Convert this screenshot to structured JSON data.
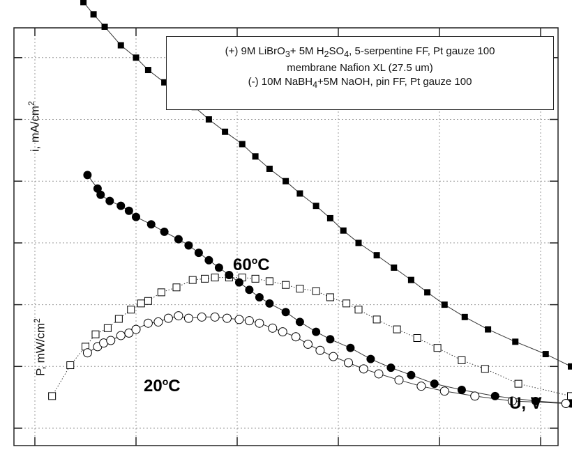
{
  "chart_data": {
    "type": "scatter",
    "xlabel": "U, V",
    "ylabel_current": "i, mA/cm",
    "ylabel_power": "P, mW/cm",
    "grid": true,
    "legend_position": "top-right",
    "legend": {
      "line1_pre": "(+) 9M LiBrO",
      "line1_sub1": "3",
      "line1_mid": "+ 5M H",
      "line1_sub2": "2",
      "line1_mid2": "SO",
      "line1_sub3": "4",
      "line1_post": ", 5-serpentine FF, Pt gauze 100",
      "line2": "membrane Nafion XL (27.5 um)",
      "line3_pre": "(-) 10M NaBH",
      "line3_sub": "4",
      "line3_post": "+5M NaOH, pin FF, Pt gauze 100"
    },
    "annotations": {
      "t60_base": "60",
      "t60_sup": "o",
      "t60_unit": "C",
      "t20_base": "20",
      "t20_sup": "o",
      "t20_unit": "C",
      "sup2": "2"
    },
    "series": [
      {
        "name": "i 60C",
        "marker": "filled-square",
        "line": "solid",
        "points": [
          [
            0.17,
            7.5
          ],
          [
            0.35,
            7.2
          ],
          [
            0.48,
            6.9
          ],
          [
            0.58,
            6.7
          ],
          [
            0.69,
            6.5
          ],
          [
            0.85,
            6.2
          ],
          [
            1.0,
            6.0
          ],
          [
            1.12,
            5.8
          ],
          [
            1.28,
            5.6
          ],
          [
            1.42,
            5.4
          ],
          [
            1.58,
            5.2
          ],
          [
            1.72,
            5.0
          ],
          [
            1.88,
            4.8
          ],
          [
            2.05,
            4.6
          ],
          [
            2.18,
            4.4
          ],
          [
            2.32,
            4.2
          ],
          [
            2.48,
            4.0
          ],
          [
            2.62,
            3.8
          ],
          [
            2.78,
            3.6
          ],
          [
            2.92,
            3.4
          ],
          [
            3.05,
            3.2
          ],
          [
            3.2,
            3.0
          ],
          [
            3.38,
            2.8
          ],
          [
            3.55,
            2.6
          ],
          [
            3.72,
            2.4
          ],
          [
            3.88,
            2.2
          ],
          [
            4.05,
            2.0
          ],
          [
            4.25,
            1.8
          ],
          [
            4.48,
            1.6
          ],
          [
            4.75,
            1.4
          ],
          [
            5.05,
            1.2
          ],
          [
            5.3,
            1.0
          ],
          [
            5.72,
            0.42
          ]
        ]
      },
      {
        "name": "P 60C",
        "marker": "open-square",
        "line": "dotted",
        "points": [
          [
            0.17,
            0.52
          ],
          [
            0.35,
            1.02
          ],
          [
            0.5,
            1.32
          ],
          [
            0.6,
            1.52
          ],
          [
            0.72,
            1.62
          ],
          [
            0.83,
            1.77
          ],
          [
            0.95,
            1.92
          ],
          [
            1.05,
            2.02
          ],
          [
            1.12,
            2.06
          ],
          [
            1.25,
            2.2
          ],
          [
            1.4,
            2.28
          ],
          [
            1.56,
            2.4
          ],
          [
            1.68,
            2.42
          ],
          [
            1.78,
            2.44
          ],
          [
            1.92,
            2.44
          ],
          [
            2.05,
            2.44
          ],
          [
            2.18,
            2.42
          ],
          [
            2.32,
            2.38
          ],
          [
            2.48,
            2.32
          ],
          [
            2.62,
            2.26
          ],
          [
            2.78,
            2.22
          ],
          [
            2.92,
            2.12
          ],
          [
            3.08,
            2.02
          ],
          [
            3.2,
            1.92
          ],
          [
            3.38,
            1.76
          ],
          [
            3.58,
            1.6
          ],
          [
            3.78,
            1.46
          ],
          [
            3.98,
            1.3
          ],
          [
            4.22,
            1.1
          ],
          [
            4.45,
            0.96
          ],
          [
            4.78,
            0.72
          ],
          [
            5.3,
            0.52
          ],
          [
            5.72,
            0.4
          ]
        ]
      },
      {
        "name": "i 20C",
        "marker": "filled-circle",
        "line": "solid",
        "points": [
          [
            0.52,
            4.1
          ],
          [
            0.62,
            3.88
          ],
          [
            0.65,
            3.78
          ],
          [
            0.74,
            3.68
          ],
          [
            0.85,
            3.6
          ],
          [
            0.93,
            3.52
          ],
          [
            1.0,
            3.42
          ],
          [
            1.15,
            3.3
          ],
          [
            1.28,
            3.18
          ],
          [
            1.42,
            3.06
          ],
          [
            1.52,
            2.96
          ],
          [
            1.62,
            2.84
          ],
          [
            1.72,
            2.72
          ],
          [
            1.82,
            2.6
          ],
          [
            1.92,
            2.48
          ],
          [
            2.02,
            2.36
          ],
          [
            2.12,
            2.24
          ],
          [
            2.22,
            2.12
          ],
          [
            2.32,
            2.02
          ],
          [
            2.48,
            1.88
          ],
          [
            2.62,
            1.72
          ],
          [
            2.78,
            1.56
          ],
          [
            2.92,
            1.44
          ],
          [
            3.12,
            1.3
          ],
          [
            3.32,
            1.12
          ],
          [
            3.52,
            0.98
          ],
          [
            3.72,
            0.86
          ],
          [
            3.95,
            0.72
          ],
          [
            4.22,
            0.62
          ],
          [
            4.55,
            0.52
          ],
          [
            4.95,
            0.44
          ],
          [
            5.3,
            0.4
          ]
        ]
      },
      {
        "name": "P 20C",
        "marker": "open-circle",
        "line": "solid",
        "points": [
          [
            0.52,
            1.22
          ],
          [
            0.62,
            1.32
          ],
          [
            0.68,
            1.38
          ],
          [
            0.75,
            1.42
          ],
          [
            0.85,
            1.5
          ],
          [
            0.93,
            1.54
          ],
          [
            1.0,
            1.6
          ],
          [
            1.12,
            1.7
          ],
          [
            1.22,
            1.72
          ],
          [
            1.32,
            1.78
          ],
          [
            1.42,
            1.82
          ],
          [
            1.52,
            1.78
          ],
          [
            1.65,
            1.8
          ],
          [
            1.78,
            1.8
          ],
          [
            1.9,
            1.78
          ],
          [
            2.02,
            1.76
          ],
          [
            2.12,
            1.74
          ],
          [
            2.22,
            1.7
          ],
          [
            2.35,
            1.62
          ],
          [
            2.45,
            1.56
          ],
          [
            2.58,
            1.48
          ],
          [
            2.7,
            1.36
          ],
          [
            2.82,
            1.26
          ],
          [
            2.95,
            1.16
          ],
          [
            3.1,
            1.06
          ],
          [
            3.25,
            0.96
          ],
          [
            3.4,
            0.88
          ],
          [
            3.6,
            0.78
          ],
          [
            3.82,
            0.68
          ],
          [
            4.05,
            0.6
          ],
          [
            4.35,
            0.52
          ],
          [
            4.72,
            0.44
          ],
          [
            5.25,
            0.4
          ]
        ]
      }
    ]
  }
}
